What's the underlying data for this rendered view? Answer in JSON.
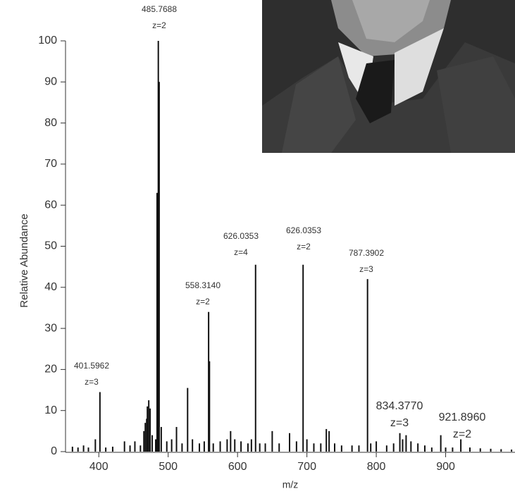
{
  "chart_data": {
    "type": "stem",
    "x_label": "m/z",
    "y_label": "Relative Abundance",
    "color": "#111111",
    "xlim": [
      352,
      1000
    ],
    "ylim": [
      0,
      100
    ],
    "xticks": [
      400,
      500,
      600,
      700,
      800,
      900
    ],
    "yticks": [
      0,
      10,
      20,
      30,
      40,
      50,
      60,
      70,
      80,
      90,
      100
    ],
    "x": [
      362,
      370,
      378,
      385,
      395,
      401.6,
      410,
      420,
      437,
      445,
      452,
      460,
      465,
      467,
      469,
      470,
      472,
      474,
      477,
      482,
      484,
      485.77,
      487,
      490,
      498,
      505,
      512,
      520,
      528,
      535,
      545,
      552,
      558.3,
      559.5,
      565,
      575,
      585,
      590,
      596,
      605,
      615,
      620,
      626,
      632,
      640,
      650,
      660,
      675,
      685,
      694.5,
      700,
      710,
      720,
      728,
      732,
      740,
      750,
      765,
      775,
      787.4,
      792,
      800,
      815,
      825,
      834,
      838,
      843,
      850,
      860,
      870,
      880,
      893,
      900,
      910,
      921.9,
      935,
      950,
      965,
      980,
      995
    ],
    "values": [
      1.2,
      1,
      1.5,
      1,
      3,
      14.5,
      1,
      1.2,
      2.5,
      1.5,
      2.5,
      1.5,
      5,
      7,
      8,
      11,
      12.5,
      10.5,
      4,
      3,
      63,
      100,
      90,
      6,
      2.5,
      3,
      6,
      2,
      15.5,
      3,
      2,
      2.5,
      34,
      22,
      2,
      2.5,
      3,
      5,
      3,
      2.5,
      2,
      3,
      45.5,
      2,
      2,
      5,
      2,
      4.5,
      2.5,
      45.5,
      3,
      2,
      2,
      5.5,
      5,
      2,
      1.5,
      1.5,
      1.5,
      42,
      2,
      2.5,
      1.5,
      2,
      4.5,
      3,
      4,
      2.5,
      2,
      1.5,
      1,
      4,
      1,
      1,
      3,
      1,
      0.8,
      0.7,
      0.6,
      0.5
    ],
    "annotations": [
      [
        "401.5962",
        "z=3"
      ],
      [
        "485.7688",
        "z=2"
      ],
      [
        "558.3140",
        "z=2"
      ],
      [
        "626.0353",
        "z=4"
      ],
      [
        "626.0353",
        "z=2"
      ],
      [
        "787.3902",
        "z=3"
      ],
      [
        "834.3770",
        "z=3"
      ],
      [
        "921.8960",
        "z=2"
      ]
    ]
  }
}
